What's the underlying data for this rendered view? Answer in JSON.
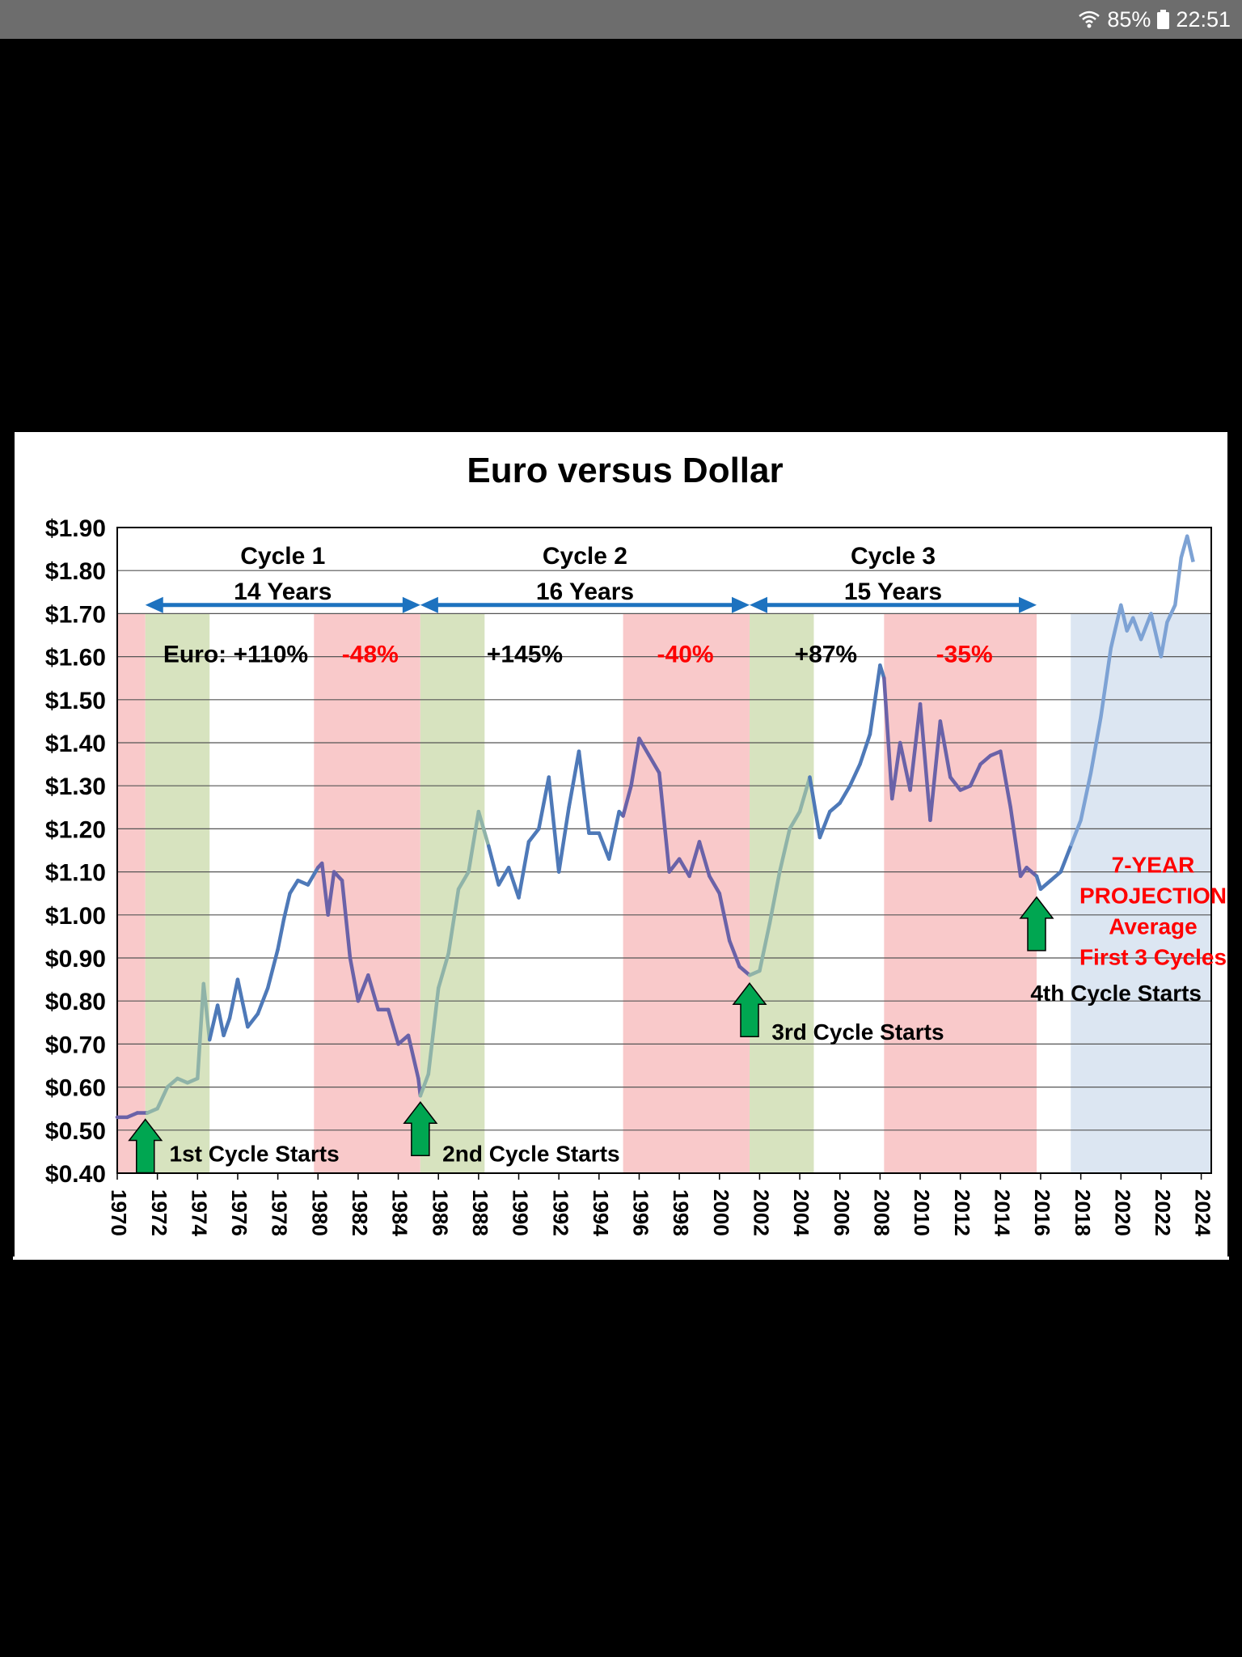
{
  "status_bar": {
    "battery_percent": "85%",
    "time": "22:51",
    "icons": [
      "wifi-icon",
      "battery-icon"
    ]
  },
  "colors": {
    "red_phase": "#f9c9ca",
    "green_phase": "#d7e3bf",
    "projection_phase": "#dce6f2",
    "line_early": "#4e79b8",
    "line_late": "#6a62a8",
    "line_rise": "#8fb3a8",
    "projection_line": "#7da2d4",
    "arrow_blue": "#1d72bf",
    "up_arrow_green": "#00a651",
    "red_text": "#ff0000"
  },
  "chart_data": {
    "type": "line",
    "title": "Euro versus Dollar",
    "xlabel": "",
    "ylabel": "",
    "xlim": [
      1970,
      2024.5
    ],
    "ylim": [
      0.4,
      1.9
    ],
    "grid": true,
    "x_ticks": [
      "1970",
      "1972",
      "1974",
      "1976",
      "1978",
      "1980",
      "1982",
      "1984",
      "1986",
      "1988",
      "1990",
      "1992",
      "1994",
      "1996",
      "1998",
      "2000",
      "2002",
      "2004",
      "2006",
      "2008",
      "2010",
      "2012",
      "2014",
      "2016",
      "2018",
      "2020",
      "2022",
      "2024"
    ],
    "y_ticks": [
      "$0.40",
      "$0.50",
      "$0.60",
      "$0.70",
      "$0.80",
      "$0.90",
      "$1.00",
      "$1.10",
      "$1.20",
      "$1.30",
      "$1.40",
      "$1.50",
      "$1.60",
      "$1.70",
      "$1.80",
      "$1.90"
    ],
    "y_tick_values": [
      0.4,
      0.5,
      0.6,
      0.7,
      0.8,
      0.9,
      1.0,
      1.1,
      1.2,
      1.3,
      1.4,
      1.5,
      1.6,
      1.7,
      1.8,
      1.9
    ],
    "phases": [
      {
        "kind": "red",
        "start": 1970,
        "end": 1971.4
      },
      {
        "kind": "green",
        "start": 1971.4,
        "end": 1974.6
      },
      {
        "kind": "red",
        "start": 1979.8,
        "end": 1985.1
      },
      {
        "kind": "green",
        "start": 1985.1,
        "end": 1988.3
      },
      {
        "kind": "red",
        "start": 1995.2,
        "end": 2001.5
      },
      {
        "kind": "green",
        "start": 2001.5,
        "end": 2004.7
      },
      {
        "kind": "red",
        "start": 2008.2,
        "end": 2015.8
      },
      {
        "kind": "projection",
        "start": 2017.5,
        "end": 2024.5
      }
    ],
    "series": [
      {
        "segment": "history",
        "x": [
          1970,
          1970.5,
          1971,
          1971.5,
          1972,
          1972.5,
          1973,
          1973.5,
          1974,
          1974.3,
          1974.6,
          1975,
          1975.3,
          1975.6,
          1976,
          1976.5,
          1977,
          1977.5,
          1978,
          1978.3,
          1978.6,
          1979,
          1979.5,
          1980,
          1980.2,
          1980.5,
          1980.8,
          1981.2,
          1981.6,
          1982,
          1982.5,
          1983,
          1983.5,
          1984,
          1984.5,
          1985,
          1985.1,
          1985.5,
          1986,
          1986.5,
          1987,
          1987.5,
          1988,
          1988.5,
          1989,
          1989.5,
          1990,
          1990.5,
          1991,
          1991.5,
          1992,
          1992.5,
          1993,
          1993.5,
          1994,
          1994.5,
          1995,
          1995.2,
          1995.6,
          1996,
          1996.5,
          1997,
          1997.5,
          1998,
          1998.5,
          1999,
          1999.5,
          2000,
          2000.5,
          2001,
          2001.5,
          2002,
          2002.5,
          2003,
          2003.5,
          2004,
          2004.5,
          2005,
          2005.5,
          2006,
          2006.5,
          2007,
          2007.5,
          2008,
          2008.2,
          2008.6,
          2009,
          2009.5,
          2010,
          2010.5,
          2011,
          2011.5,
          2012,
          2012.5,
          2013,
          2013.5,
          2014,
          2014.5,
          2015,
          2015.3,
          2015.8,
          2016,
          2016.5,
          2017,
          2017.5
        ],
        "values": [
          0.53,
          0.53,
          0.54,
          0.54,
          0.55,
          0.6,
          0.62,
          0.61,
          0.62,
          0.84,
          0.71,
          0.79,
          0.72,
          0.76,
          0.85,
          0.74,
          0.77,
          0.83,
          0.92,
          0.99,
          1.05,
          1.08,
          1.07,
          1.11,
          1.12,
          1.0,
          1.1,
          1.08,
          0.9,
          0.8,
          0.86,
          0.78,
          0.78,
          0.7,
          0.72,
          0.62,
          0.58,
          0.63,
          0.83,
          0.91,
          1.06,
          1.1,
          1.24,
          1.16,
          1.07,
          1.11,
          1.04,
          1.17,
          1.2,
          1.32,
          1.1,
          1.25,
          1.38,
          1.19,
          1.19,
          1.13,
          1.24,
          1.23,
          1.3,
          1.41,
          1.37,
          1.33,
          1.1,
          1.13,
          1.09,
          1.17,
          1.09,
          1.05,
          0.94,
          0.88,
          0.86,
          0.87,
          0.98,
          1.1,
          1.2,
          1.24,
          1.32,
          1.18,
          1.24,
          1.26,
          1.3,
          1.35,
          1.42,
          1.58,
          1.55,
          1.27,
          1.4,
          1.29,
          1.49,
          1.22,
          1.45,
          1.32,
          1.29,
          1.3,
          1.35,
          1.37,
          1.38,
          1.25,
          1.09,
          1.11,
          1.09,
          1.06,
          1.08,
          1.1,
          1.16
        ]
      },
      {
        "segment": "projection",
        "x": [
          2017.5,
          2018,
          2018.5,
          2019,
          2019.5,
          2020,
          2020.3,
          2020.6,
          2021,
          2021.5,
          2022,
          2022.3,
          2022.7,
          2023,
          2023.3,
          2023.6
        ],
        "values": [
          1.16,
          1.22,
          1.33,
          1.46,
          1.62,
          1.72,
          1.66,
          1.69,
          1.64,
          1.7,
          1.6,
          1.68,
          1.72,
          1.83,
          1.88,
          1.82
        ]
      }
    ],
    "cycles": [
      {
        "name": "Cycle 1",
        "duration": "14 Years",
        "start": 1971.4,
        "end": 1985.1,
        "gain": "Euro: +110%",
        "loss": "-48%"
      },
      {
        "name": "Cycle 2",
        "duration": "16 Years",
        "start": 1985.1,
        "end": 2001.5,
        "gain": "+145%",
        "loss": "-40%"
      },
      {
        "name": "Cycle 3",
        "duration": "15 Years",
        "start": 2001.5,
        "end": 2015.8,
        "gain": "+87%",
        "loss": "-35%"
      }
    ],
    "cycle_start_markers": [
      {
        "label": "1st Cycle Starts",
        "x": 1971.4,
        "y": 0.54
      },
      {
        "label": "2nd Cycle Starts",
        "x": 1985.1,
        "y": 0.58
      },
      {
        "label": "3rd Cycle Starts",
        "x": 2001.5,
        "y": 0.86
      },
      {
        "label": "4th Cycle Starts",
        "x": 2015.8,
        "y": 1.06
      }
    ],
    "projection_annotation": [
      "7-YEAR",
      "PROJECTION",
      "Average",
      "First 3 Cycles"
    ]
  }
}
